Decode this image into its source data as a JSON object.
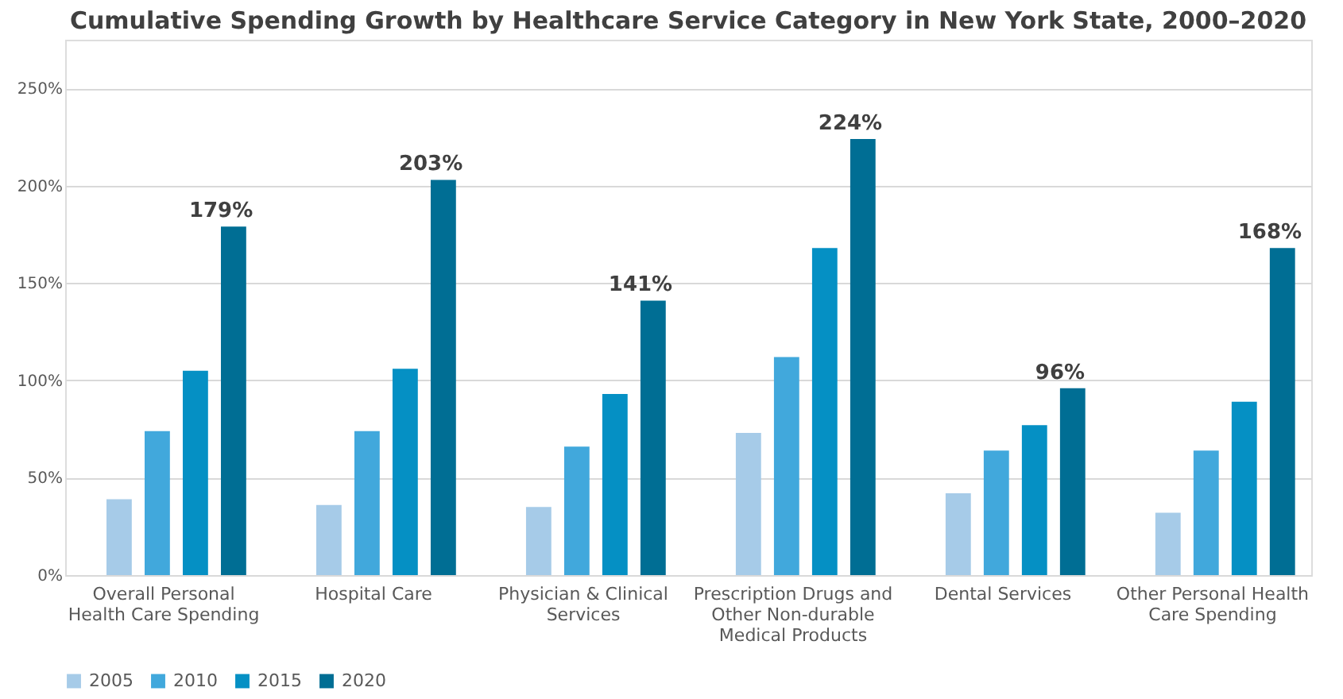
{
  "chart_data": {
    "type": "bar",
    "title": "Cumulative Spending Growth by Healthcare Service Category in New York State, 2000–2020",
    "categories": [
      "Overall Personal Health Care Spending",
      "Hospital Care",
      "Physician & Clinical Services",
      "Prescription Drugs and Other Non-durable Medical Products",
      "Dental Services",
      "Other Personal Health Care Spending"
    ],
    "series": [
      {
        "name": "2005",
        "color": "#a6cbe8",
        "values": [
          39,
          36,
          35,
          73,
          42,
          32
        ]
      },
      {
        "name": "2010",
        "color": "#41a8dc",
        "values": [
          74,
          74,
          66,
          112,
          64,
          64
        ]
      },
      {
        "name": "2015",
        "color": "#0590c4",
        "values": [
          105,
          106,
          93,
          168,
          77,
          89
        ]
      },
      {
        "name": "2020",
        "color": "#006e94",
        "values": [
          179,
          203,
          141,
          224,
          96,
          168
        ],
        "value_labels": [
          "179%",
          "203%",
          "141%",
          "224%",
          "96%",
          "168%"
        ]
      }
    ],
    "ylim": [
      0,
      275
    ],
    "yticks": [
      {
        "value": 0,
        "label": "0%"
      },
      {
        "value": 50,
        "label": "50%"
      },
      {
        "value": 100,
        "label": "100%"
      },
      {
        "value": 150,
        "label": "150%"
      },
      {
        "value": 200,
        "label": "200%"
      },
      {
        "value": 250,
        "label": "250%"
      }
    ],
    "grid": "y",
    "legend": "bottom"
  }
}
